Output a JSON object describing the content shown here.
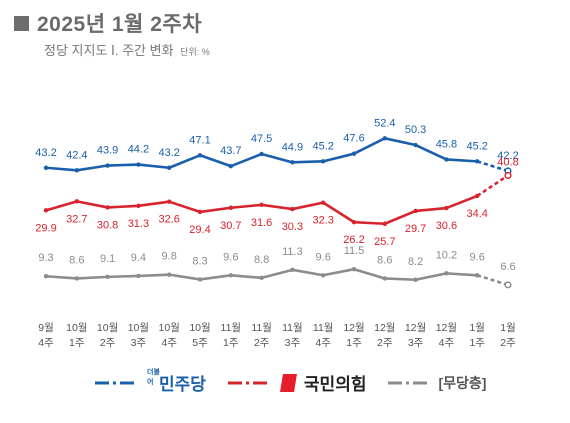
{
  "title": "2025년 1월 2주차",
  "subtitle": "정당 지지도 Ⅰ. 주간 변화",
  "unit_note": "단위: %",
  "legend": {
    "dem_label": "민주당",
    "dem_logo_small": "더불어",
    "ppp_label": "국민의힘",
    "none_label": "[무당층]"
  },
  "colors": {
    "dem": "#1a5fab",
    "ppp": "#d9232e",
    "none": "#8c8c8c"
  },
  "chart_data": {
    "type": "line",
    "x": [
      "9월\n4주",
      "10월\n1주",
      "10월\n2주",
      "10월\n3주",
      "10월\n4주",
      "10월\n5주",
      "11월\n1주",
      "11월\n2주",
      "11월\n3주",
      "11월\n4주",
      "12월\n1주",
      "12월\n2주",
      "12월\n3주",
      "12월\n4주",
      "1월\n1주",
      "1월\n2주"
    ],
    "series": [
      {
        "name": "민주당",
        "color": "#1a5fab",
        "values": [
          43.2,
          42.4,
          43.9,
          44.2,
          43.2,
          47.1,
          43.7,
          47.5,
          44.9,
          45.2,
          47.6,
          52.4,
          50.3,
          45.8,
          45.2,
          42.2
        ]
      },
      {
        "name": "국민의힘",
        "color": "#d9232e",
        "values": [
          29.9,
          32.7,
          30.8,
          31.3,
          32.6,
          29.4,
          30.7,
          31.6,
          30.3,
          32.3,
          26.2,
          25.7,
          29.7,
          30.6,
          34.4,
          40.8
        ]
      },
      {
        "name": "[무당층]",
        "color": "#8c8c8c",
        "values": [
          9.3,
          8.6,
          9.1,
          9.4,
          9.8,
          8.3,
          9.6,
          8.8,
          11.3,
          9.6,
          11.5,
          8.6,
          8.2,
          10.2,
          9.6,
          6.6
        ]
      }
    ],
    "ylim": [
      0,
      60
    ],
    "grid": false,
    "legend_position": "bottom"
  }
}
